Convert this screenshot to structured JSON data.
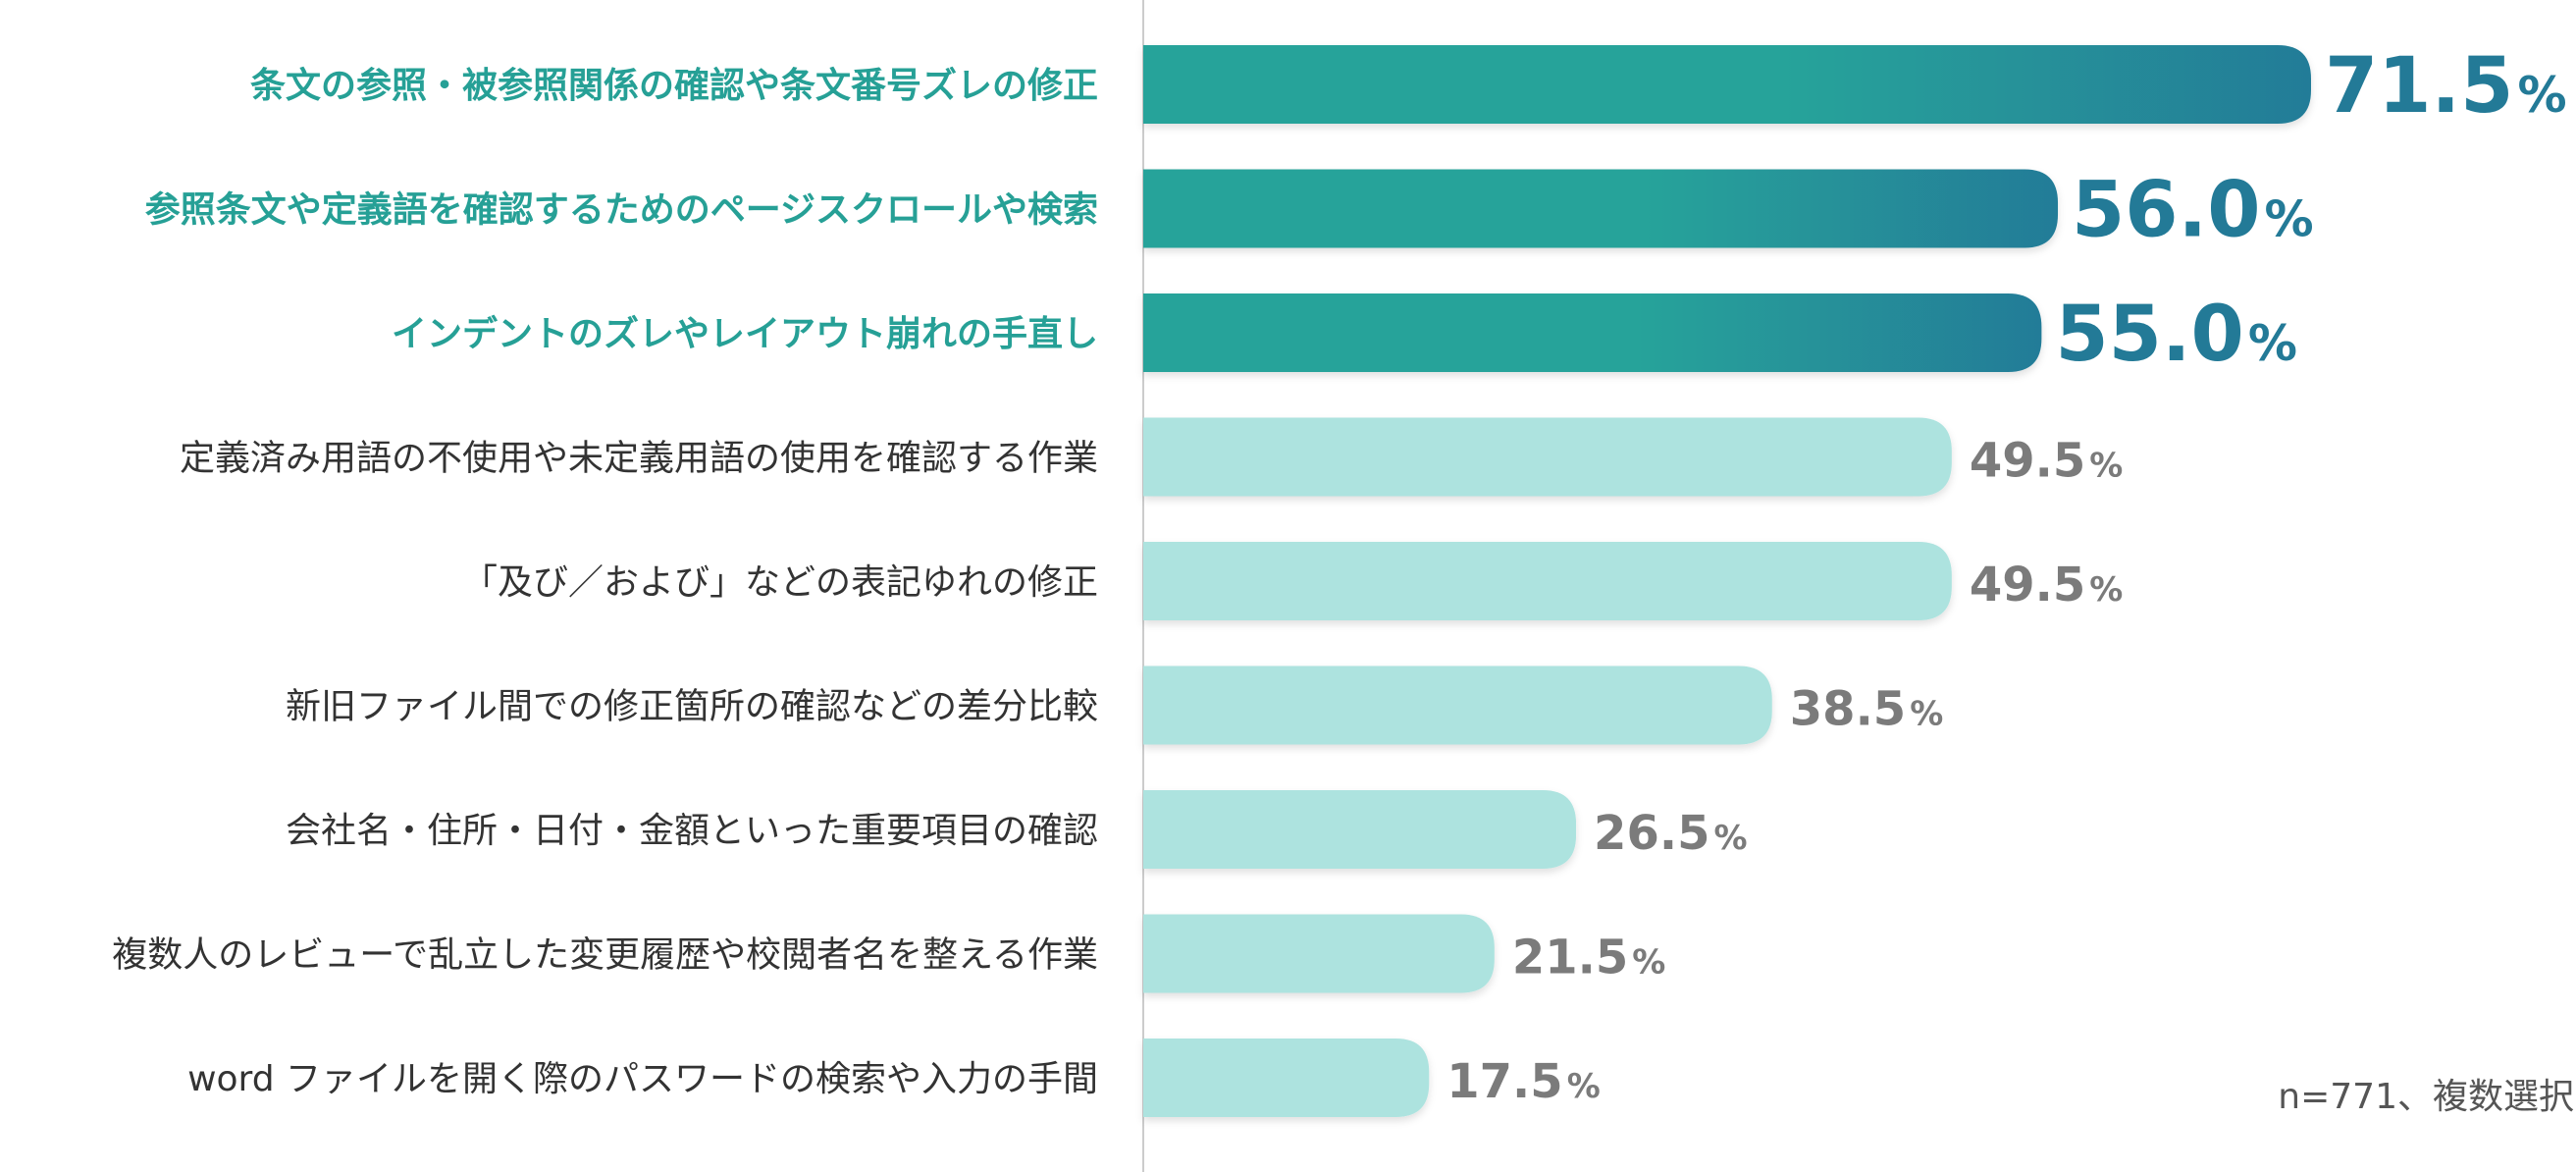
{
  "note": "n=771、複数選択",
  "colors": {
    "highlight_text": "#26a096",
    "highlight_bar_start": "#26a39a",
    "highlight_bar_end": "#247c98",
    "highlight_value": "#237a97",
    "normal_bar": "#ade3df",
    "normal_text": "#333333",
    "normal_value": "#7b7b7b",
    "axis": "#cccccc"
  },
  "chart_data": {
    "type": "bar",
    "orientation": "horizontal",
    "title": "",
    "xlabel": "",
    "ylabel": "",
    "xlim": [
      0,
      71.5
    ],
    "grid": false,
    "unit": "%",
    "categories": [
      "条文の参照・被参照関係の確認や条文番号ズレの修正",
      "参照条文や定義語を確認するためのページスクロールや検索",
      "インデントのズレやレイアウト崩れの手直し",
      "定義済み用語の不使用や未定義用語の使用を確認する作業",
      "「及び／および」などの表記ゆれの修正",
      "新旧ファイル間での修正箇所の確認などの差分比較",
      "会社名・住所・日付・金額といった重要項目の確認",
      "複数人のレビューで乱立した変更履歴や校閲者名を整える作業",
      "word ファイルを開く際のパスワードの検索や入力の手間"
    ],
    "values": [
      71.5,
      56.0,
      55.0,
      49.5,
      49.5,
      38.5,
      26.5,
      21.5,
      17.5
    ],
    "value_labels": [
      "71.5",
      "56.0",
      "55.0",
      "49.5",
      "49.5",
      "38.5",
      "26.5",
      "21.5",
      "17.5"
    ],
    "highlighted": [
      true,
      true,
      true,
      false,
      false,
      false,
      false,
      false,
      false
    ]
  }
}
